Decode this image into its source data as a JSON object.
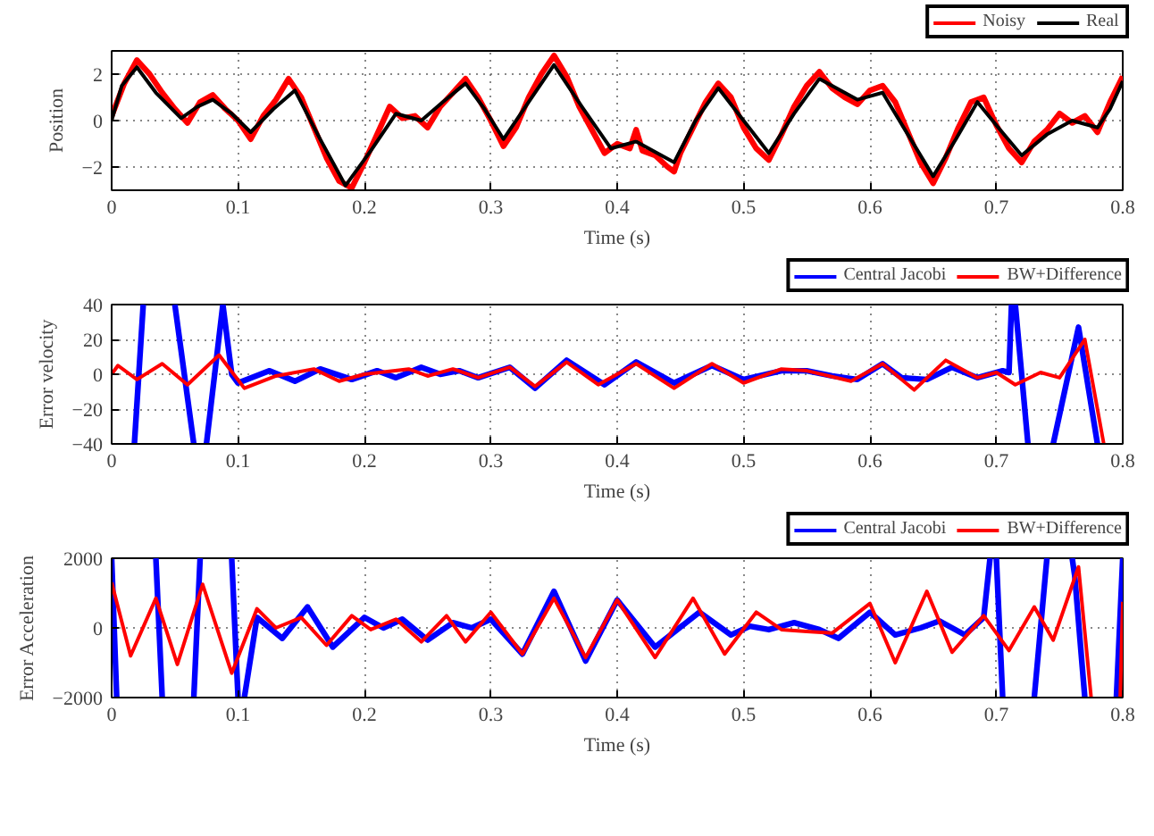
{
  "chart_data": [
    {
      "type": "line",
      "xlabel": "Time (s)",
      "ylabel": "Position",
      "xlim": [
        0,
        0.8
      ],
      "xticks": [
        0,
        0.1,
        0.2,
        0.3,
        0.4,
        0.5,
        0.6,
        0.7,
        0.8
      ],
      "ylim": [
        -3,
        3
      ],
      "yticks": [
        {
          "value": -2,
          "label": "−2"
        },
        0,
        2
      ],
      "grid": true,
      "legend": "top right",
      "series": [
        {
          "name": "Noisy",
          "color": "#ff0000",
          "x": [
            0,
            0.01,
            0.02,
            0.03,
            0.04,
            0.05,
            0.06,
            0.07,
            0.08,
            0.09,
            0.1,
            0.11,
            0.12,
            0.13,
            0.14,
            0.15,
            0.16,
            0.17,
            0.18,
            0.19,
            0.2,
            0.21,
            0.22,
            0.23,
            0.24,
            0.25,
            0.26,
            0.27,
            0.28,
            0.29,
            0.3,
            0.31,
            0.32,
            0.33,
            0.34,
            0.35,
            0.36,
            0.37,
            0.38,
            0.39,
            0.4,
            0.41,
            0.415,
            0.42,
            0.43,
            0.44,
            0.445,
            0.45,
            0.46,
            0.47,
            0.48,
            0.49,
            0.5,
            0.51,
            0.52,
            0.53,
            0.54,
            0.55,
            0.56,
            0.57,
            0.58,
            0.59,
            0.6,
            0.61,
            0.62,
            0.63,
            0.64,
            0.65,
            0.66,
            0.67,
            0.68,
            0.69,
            0.7,
            0.71,
            0.72,
            0.73,
            0.74,
            0.75,
            0.76,
            0.77,
            0.78,
            0.79,
            0.8
          ],
          "values": [
            0.2,
            1.6,
            2.6,
            2.0,
            1.2,
            0.5,
            -0.1,
            0.8,
            1.1,
            0.5,
            0.0,
            -0.8,
            0.2,
            0.9,
            1.8,
            1.0,
            -0.3,
            -1.6,
            -2.6,
            -2.9,
            -1.8,
            -0.6,
            0.6,
            0.1,
            0.2,
            -0.3,
            0.6,
            1.2,
            1.8,
            1.0,
            0.0,
            -1.1,
            -0.3,
            1.0,
            2.0,
            2.8,
            1.9,
            0.6,
            -0.4,
            -1.4,
            -1.0,
            -1.2,
            -0.4,
            -1.3,
            -1.5,
            -2.0,
            -2.2,
            -1.4,
            -0.3,
            0.8,
            1.6,
            1.0,
            -0.3,
            -1.2,
            -1.7,
            -0.6,
            0.6,
            1.5,
            2.1,
            1.4,
            1.0,
            0.7,
            1.3,
            1.5,
            0.8,
            -0.5,
            -1.8,
            -2.7,
            -1.6,
            -0.3,
            0.8,
            1.0,
            -0.2,
            -1.2,
            -1.8,
            -0.9,
            -0.4,
            0.3,
            -0.1,
            0.2,
            -0.5,
            0.8,
            1.9
          ]
        },
        {
          "name": "Real",
          "color": "#000000",
          "x": [
            0,
            0.008,
            0.02,
            0.035,
            0.055,
            0.068,
            0.08,
            0.095,
            0.11,
            0.128,
            0.145,
            0.165,
            0.185,
            0.205,
            0.225,
            0.245,
            0.262,
            0.28,
            0.295,
            0.31,
            0.33,
            0.35,
            0.372,
            0.395,
            0.415,
            0.445,
            0.462,
            0.48,
            0.5,
            0.52,
            0.54,
            0.56,
            0.59,
            0.61,
            0.63,
            0.65,
            0.668,
            0.685,
            0.7,
            0.72,
            0.74,
            0.76,
            0.78,
            0.79,
            0.8
          ],
          "values": [
            0,
            1.5,
            2.3,
            1.2,
            0.1,
            0.6,
            0.9,
            0.3,
            -0.5,
            0.5,
            1.3,
            -0.8,
            -2.8,
            -1.3,
            0.3,
            0,
            0.8,
            1.6,
            0.5,
            -0.8,
            0.8,
            2.4,
            0.6,
            -1.2,
            -0.9,
            -1.8,
            0,
            1.4,
            0,
            -1.4,
            0.3,
            1.8,
            0.9,
            1.2,
            -0.6,
            -2.4,
            -0.8,
            0.8,
            -0.2,
            -1.5,
            -0.6,
            0,
            -0.3,
            0.5,
            1.7
          ]
        }
      ]
    },
    {
      "type": "line",
      "xlabel": "Time (s)",
      "ylabel": "Error velocity",
      "xlim": [
        0,
        0.8
      ],
      "xticks": [
        0,
        0.1,
        0.2,
        0.3,
        0.4,
        0.5,
        0.6,
        0.7,
        0.8
      ],
      "ylim": [
        -40,
        40
      ],
      "yticks": [
        {
          "value": -40,
          "label": "−40"
        },
        {
          "value": -20,
          "label": "−20"
        },
        0,
        20,
        40
      ],
      "grid": true,
      "legend": "top right",
      "series": [
        {
          "name": "Central Jacobi",
          "color": "#0000ff",
          "x": [
            0.018,
            0.025,
            0.037,
            0.05,
            0.065,
            0.07,
            0.075,
            0.088,
            0.095,
            0.1,
            0.125,
            0.145,
            0.165,
            0.19,
            0.21,
            0.225,
            0.245,
            0.26,
            0.275,
            0.29,
            0.315,
            0.335,
            0.36,
            0.39,
            0.415,
            0.445,
            0.475,
            0.5,
            0.53,
            0.55,
            0.57,
            0.59,
            0.61,
            0.625,
            0.645,
            0.665,
            0.685,
            0.705,
            0.71,
            0.712,
            0.714,
            0.715,
            0.725,
            0.735,
            0.745,
            0.765,
            0.78
          ],
          "values": [
            -40,
            40,
            null,
            40,
            -40,
            null,
            -40,
            40,
            0,
            -5,
            2,
            -4,
            3,
            -3,
            2,
            -2,
            4,
            0,
            2,
            -2,
            4,
            -8,
            8,
            -6,
            7,
            -5,
            5,
            -3,
            2,
            2,
            -1,
            -3,
            6,
            -2,
            -3,
            4,
            -2,
            2,
            1,
            40,
            null,
            40,
            -40,
            null,
            -40,
            27,
            -40
          ]
        },
        {
          "name": "BW+Difference",
          "color": "#ff0000",
          "x": [
            0,
            0.005,
            0.02,
            0.04,
            0.06,
            0.085,
            0.105,
            0.13,
            0.16,
            0.18,
            0.2,
            0.235,
            0.25,
            0.27,
            0.29,
            0.315,
            0.335,
            0.36,
            0.385,
            0.415,
            0.445,
            0.475,
            0.5,
            0.53,
            0.55,
            0.585,
            0.61,
            0.635,
            0.66,
            0.685,
            0.7,
            0.715,
            0.735,
            0.75,
            0.77,
            0.785
          ],
          "values": [
            0,
            5,
            -3,
            6,
            -6,
            11,
            -8,
            -1,
            3,
            -4,
            0,
            3,
            -1,
            3,
            -2,
            4,
            -7,
            7,
            -6,
            6,
            -8,
            6,
            -5,
            3,
            2,
            -4,
            6,
            -9,
            8,
            -2,
            1,
            -6,
            1,
            -2,
            20,
            -40
          ]
        }
      ]
    },
    {
      "type": "line",
      "xlabel": "Time (s)",
      "ylabel": "Error Acceleration",
      "xlim": [
        0,
        0.8
      ],
      "xticks": [
        0,
        0.1,
        0.2,
        0.3,
        0.4,
        0.5,
        0.6,
        0.7,
        0.8
      ],
      "ylim": [
        -2000,
        2000
      ],
      "yticks": [
        {
          "value": -2000,
          "label": "−2000"
        },
        0,
        2000
      ],
      "grid": true,
      "legend": "top right",
      "series": [
        {
          "name": "Central Jacobi",
          "color": "#0000ff",
          "x": [
            0,
            0.004,
            0.02,
            0.035,
            0.04,
            0.052,
            0.065,
            0.07,
            0.082,
            0.095,
            0.1,
            0.102,
            0.105,
            0.115,
            0.135,
            0.155,
            0.175,
            0.2,
            0.215,
            0.23,
            0.25,
            0.27,
            0.285,
            0.3,
            0.325,
            0.35,
            0.375,
            0.4,
            0.43,
            0.465,
            0.49,
            0.505,
            0.52,
            0.54,
            0.56,
            0.575,
            0.6,
            0.62,
            0.64,
            0.655,
            0.675,
            0.69,
            0.695,
            0.697,
            0.7,
            0.705,
            0.717,
            0.73,
            0.74,
            0.75,
            0.76,
            0.762,
            0.77,
            0.785,
            0.795,
            0.8
          ],
          "values": [
            2000,
            -2000,
            null,
            2000,
            -2000,
            null,
            -2000,
            2000,
            null,
            2000,
            -2000,
            null,
            -2000,
            300,
            -300,
            600,
            -550,
            300,
            0,
            250,
            -350,
            150,
            0,
            250,
            -750,
            1050,
            -950,
            800,
            -550,
            450,
            -200,
            50,
            -50,
            150,
            -50,
            -300,
            450,
            -200,
            0,
            200,
            -200,
            300,
            2000,
            null,
            2000,
            -2000,
            null,
            -2000,
            2000,
            null,
            2000,
            1500,
            -2000,
            null,
            -2000,
            2000
          ]
        },
        {
          "name": "BW+Difference",
          "color": "#ff0000",
          "x": [
            0,
            0.015,
            0.035,
            0.052,
            0.072,
            0.095,
            0.115,
            0.13,
            0.15,
            0.17,
            0.19,
            0.205,
            0.225,
            0.245,
            0.265,
            0.28,
            0.3,
            0.325,
            0.35,
            0.375,
            0.4,
            0.43,
            0.46,
            0.485,
            0.51,
            0.53,
            0.55,
            0.57,
            0.6,
            0.62,
            0.645,
            0.665,
            0.69,
            0.71,
            0.73,
            0.745,
            0.765,
            0.775,
            0.787,
            0.798,
            0.8
          ],
          "values": [
            1300,
            -800,
            850,
            -1050,
            1250,
            -1300,
            550,
            0,
            300,
            -500,
            350,
            -50,
            250,
            -400,
            350,
            -400,
            450,
            -750,
            850,
            -850,
            800,
            -850,
            850,
            -750,
            450,
            -50,
            -100,
            -150,
            700,
            -1000,
            1050,
            -700,
            350,
            -650,
            600,
            -350,
            1750,
            -2000,
            null,
            -2000,
            750
          ]
        }
      ]
    }
  ]
}
